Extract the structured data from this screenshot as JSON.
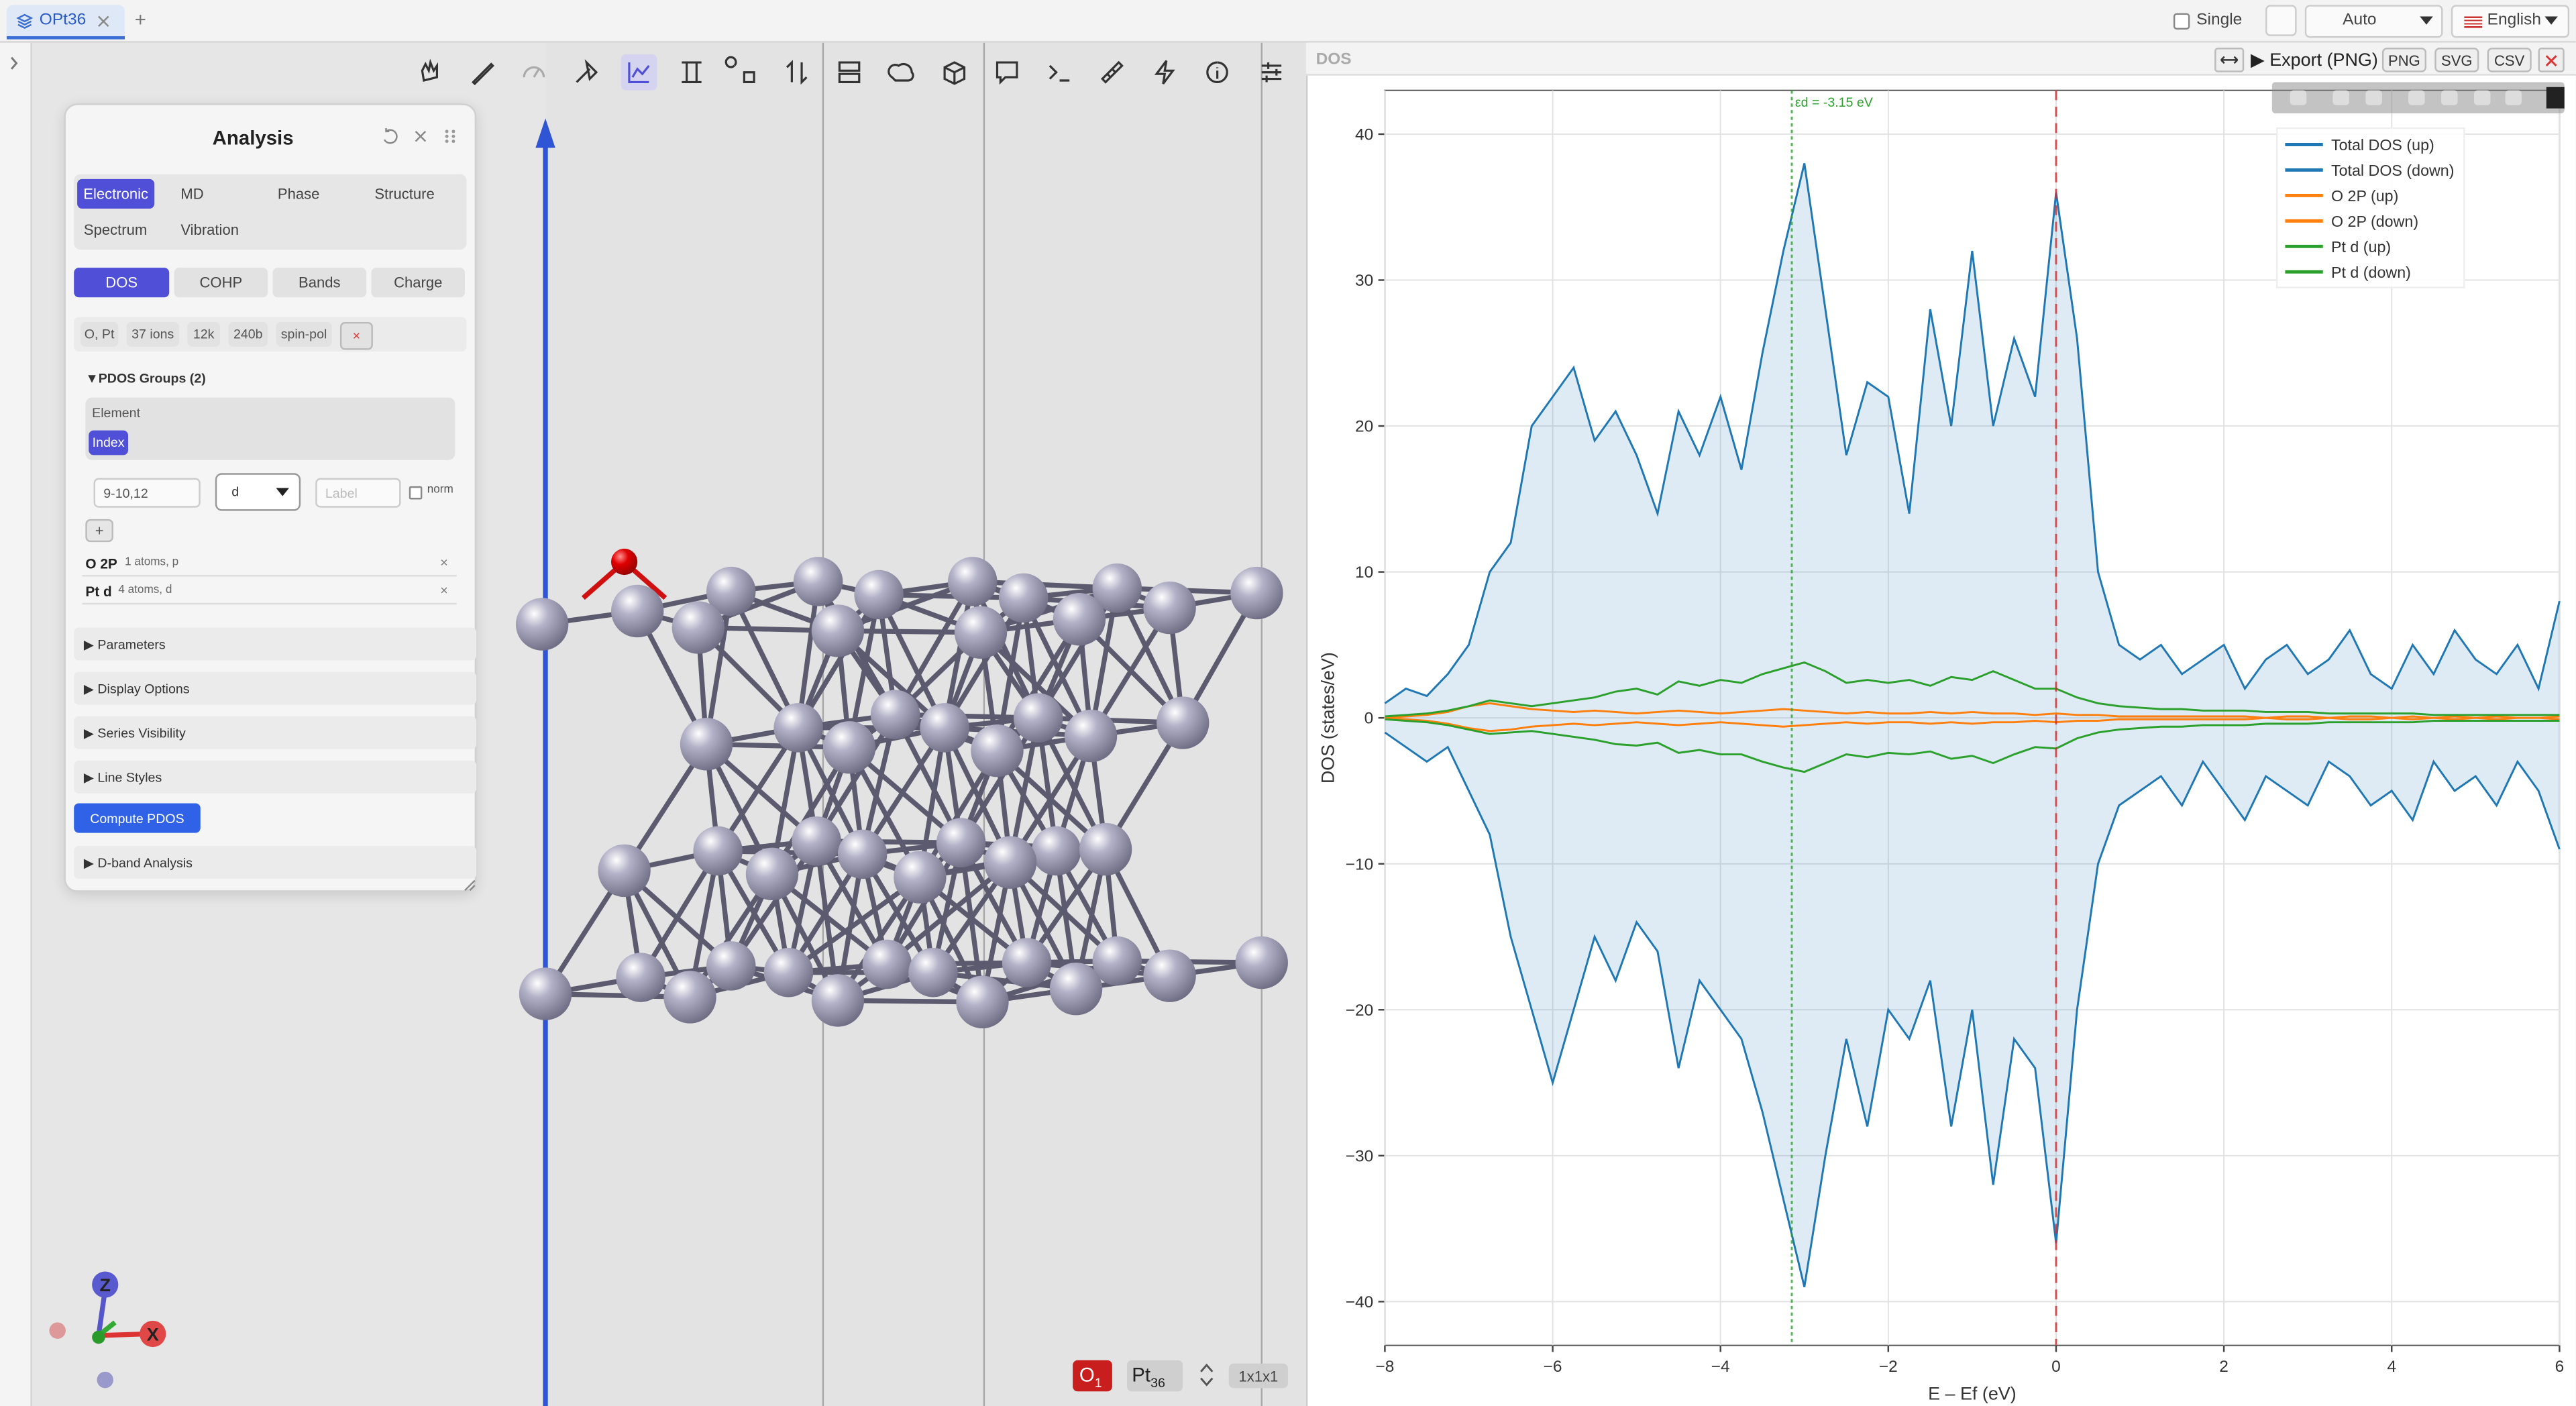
{
  "tabs": {
    "active": "OPt36",
    "new": "+"
  },
  "topbar": {
    "single": "Single",
    "theme": "Auto",
    "language": "English"
  },
  "panel": {
    "title": "Analysis",
    "categories": [
      "Electronic",
      "MD",
      "Phase",
      "Structure",
      "Spectrum",
      "Vibration"
    ],
    "subtabs": [
      "DOS",
      "COHP",
      "Bands",
      "Charge"
    ],
    "chips": [
      "O, Pt",
      "37 ions",
      "12k",
      "240b",
      "spin-pol"
    ],
    "clear": "×",
    "pdos_groups": "▼PDOS Groups (2)",
    "mode_label": "Element",
    "mode": "Index",
    "selection": "9-10,12",
    "orbital": "d",
    "label_placeholder": "Label",
    "norm": "norm",
    "add": "+",
    "groups": [
      {
        "name": "O 2P",
        "detail": "1 atoms, p"
      },
      {
        "name": "Pt d",
        "detail": "4 atoms, d"
      }
    ],
    "remove": "×",
    "sections": [
      "▶ Parameters",
      "▶ Display Options",
      "▶ Series Visibility",
      "▶ Line Styles"
    ],
    "compute": "Compute PDOS",
    "dband": "▶ D-band Analysis"
  },
  "viewer": {
    "formula": [
      {
        "element": "O",
        "count": "1"
      },
      {
        "element": "Pt",
        "count": "36"
      }
    ],
    "supercell": "1x1x1",
    "axes": [
      "Z",
      "X"
    ]
  },
  "chart_panel": {
    "title": "DOS",
    "export": "▶ Export (PNG)",
    "formats": [
      "PNG",
      "SVG",
      "CSV"
    ]
  },
  "chart_data": {
    "type": "line",
    "x_label": "E – Ef (eV)",
    "y_label": "DOS (states/eV)",
    "x": [
      -8,
      -7.75,
      -7.5,
      -7.25,
      -7,
      -6.75,
      -6.5,
      -6.25,
      -6,
      -5.75,
      -5.5,
      -5.25,
      -5,
      -4.75,
      -4.5,
      -4.25,
      -4,
      -3.75,
      -3.5,
      -3.25,
      -3,
      -2.75,
      -2.5,
      -2.25,
      -2,
      -1.75,
      -1.5,
      -1.25,
      -1,
      -0.75,
      -0.5,
      -0.25,
      0,
      0.25,
      0.5,
      0.75,
      1,
      1.25,
      1.5,
      1.75,
      2,
      2.25,
      2.5,
      2.75,
      3,
      3.25,
      3.5,
      3.75,
      4,
      4.25,
      4.5,
      4.75,
      5,
      5.25,
      5.5,
      5.75,
      6
    ],
    "series": [
      {
        "name": "Total DOS (up)",
        "color": "#1f77b4",
        "fill": true,
        "values": [
          1,
          2,
          1.5,
          3,
          5,
          10,
          12,
          20,
          22,
          24,
          19,
          21,
          18,
          14,
          21,
          18,
          22,
          17,
          25,
          32,
          38,
          28,
          18,
          23,
          22,
          14,
          28,
          20,
          32,
          20,
          26,
          22,
          36,
          26,
          10,
          5,
          4,
          5,
          3,
          4,
          5,
          2,
          4,
          5,
          3,
          4,
          6,
          3,
          2,
          5,
          3,
          6,
          4,
          3,
          5,
          2,
          8
        ]
      },
      {
        "name": "Total DOS (down)",
        "color": "#1f77b4",
        "fill": true,
        "values": [
          -1,
          -2,
          -3,
          -2,
          -5,
          -8,
          -15,
          -20,
          -25,
          -20,
          -15,
          -18,
          -14,
          -16,
          -24,
          -18,
          -20,
          -22,
          -27,
          -33,
          -39,
          -30,
          -22,
          -28,
          -20,
          -22,
          -18,
          -28,
          -20,
          -32,
          -22,
          -24,
          -36,
          -20,
          -10,
          -6,
          -5,
          -4,
          -6,
          -3,
          -5,
          -7,
          -4,
          -5,
          -6,
          -3,
          -4,
          -6,
          -5,
          -7,
          -3,
          -5,
          -4,
          -6,
          -3,
          -5,
          -9
        ]
      },
      {
        "name": "O 2P (up)",
        "color": "#ff7f0e",
        "values": [
          0,
          0.1,
          0.2,
          0.4,
          0.8,
          1,
          0.8,
          0.6,
          0.5,
          0.4,
          0.5,
          0.4,
          0.3,
          0.4,
          0.5,
          0.4,
          0.3,
          0.4,
          0.5,
          0.6,
          0.5,
          0.4,
          0.3,
          0.4,
          0.3,
          0.3,
          0.4,
          0.3,
          0.4,
          0.3,
          0.3,
          0.2,
          0.3,
          0.2,
          0.2,
          0.1,
          0.1,
          0.1,
          0.1,
          0.1,
          0.1,
          0.1,
          0,
          0.1,
          0.1,
          0,
          0.1,
          0.1,
          0,
          0.1,
          0,
          0.1,
          0,
          0.1,
          0,
          0,
          0.1
        ]
      },
      {
        "name": "O 2P (down)",
        "color": "#ff7f0e",
        "values": [
          0,
          -0.1,
          -0.2,
          -0.4,
          -0.7,
          -0.9,
          -0.8,
          -0.6,
          -0.5,
          -0.4,
          -0.5,
          -0.4,
          -0.3,
          -0.4,
          -0.5,
          -0.4,
          -0.3,
          -0.4,
          -0.5,
          -0.6,
          -0.5,
          -0.4,
          -0.3,
          -0.4,
          -0.3,
          -0.3,
          -0.4,
          -0.3,
          -0.4,
          -0.3,
          -0.3,
          -0.2,
          -0.3,
          -0.2,
          -0.2,
          -0.1,
          -0.1,
          -0.1,
          -0.1,
          -0.1,
          -0.1,
          -0.1,
          0,
          -0.1,
          -0.1,
          0,
          -0.1,
          -0.1,
          0,
          -0.1,
          0,
          -0.1,
          0,
          -0.1,
          0,
          0,
          -0.1
        ]
      },
      {
        "name": "Pt d (up)",
        "color": "#2ca02c",
        "values": [
          0.1,
          0.2,
          0.3,
          0.5,
          0.8,
          1.2,
          1,
          0.8,
          1,
          1.2,
          1.4,
          1.8,
          2,
          1.6,
          2.5,
          2.2,
          2.6,
          2.4,
          3,
          3.4,
          3.8,
          3.2,
          2.4,
          2.6,
          2.4,
          2.6,
          2.2,
          2.8,
          2.6,
          3.2,
          2.6,
          2,
          2,
          1.4,
          1,
          0.8,
          0.7,
          0.6,
          0.6,
          0.5,
          0.5,
          0.5,
          0.4,
          0.4,
          0.4,
          0.3,
          0.3,
          0.3,
          0.3,
          0.3,
          0.2,
          0.2,
          0.2,
          0.2,
          0.2,
          0.2,
          0.2
        ]
      },
      {
        "name": "Pt d (down)",
        "color": "#2ca02c",
        "values": [
          -0.1,
          -0.2,
          -0.3,
          -0.5,
          -0.8,
          -1.1,
          -1,
          -0.9,
          -1.1,
          -1.3,
          -1.5,
          -1.8,
          -1.9,
          -1.7,
          -2.4,
          -2.2,
          -2.5,
          -2.5,
          -3,
          -3.4,
          -3.7,
          -3.1,
          -2.5,
          -2.7,
          -2.4,
          -2.5,
          -2.3,
          -2.8,
          -2.6,
          -3.1,
          -2.5,
          -2,
          -2.1,
          -1.4,
          -1,
          -0.8,
          -0.7,
          -0.6,
          -0.6,
          -0.5,
          -0.5,
          -0.5,
          -0.4,
          -0.4,
          -0.4,
          -0.3,
          -0.3,
          -0.3,
          -0.3,
          -0.3,
          -0.2,
          -0.2,
          -0.2,
          -0.2,
          -0.2,
          -0.2,
          -0.2
        ]
      }
    ],
    "xlim": [
      -8,
      6
    ],
    "ylim": [
      -43,
      43
    ],
    "xticks": [
      {
        "value": -8,
        "label": "−8"
      },
      {
        "value": -6,
        "label": "−6"
      },
      {
        "value": -4,
        "label": "−4"
      },
      {
        "value": -2,
        "label": "−2"
      },
      0,
      2,
      4,
      6
    ],
    "yticks": [
      {
        "value": -40,
        "label": "−40"
      },
      {
        "value": -30,
        "label": "−30"
      },
      {
        "value": -20,
        "label": "−20"
      },
      {
        "value": -10,
        "label": "−10"
      },
      0,
      10,
      20,
      30,
      40
    ],
    "grid": true,
    "vlines": [
      {
        "x": -3.15,
        "label": "εd = -3.15 eV",
        "color": "#2ca02c",
        "style": "dotted"
      },
      {
        "x": 0,
        "color": "#d62728",
        "style": "dashed"
      }
    ],
    "legend": "upper right"
  }
}
